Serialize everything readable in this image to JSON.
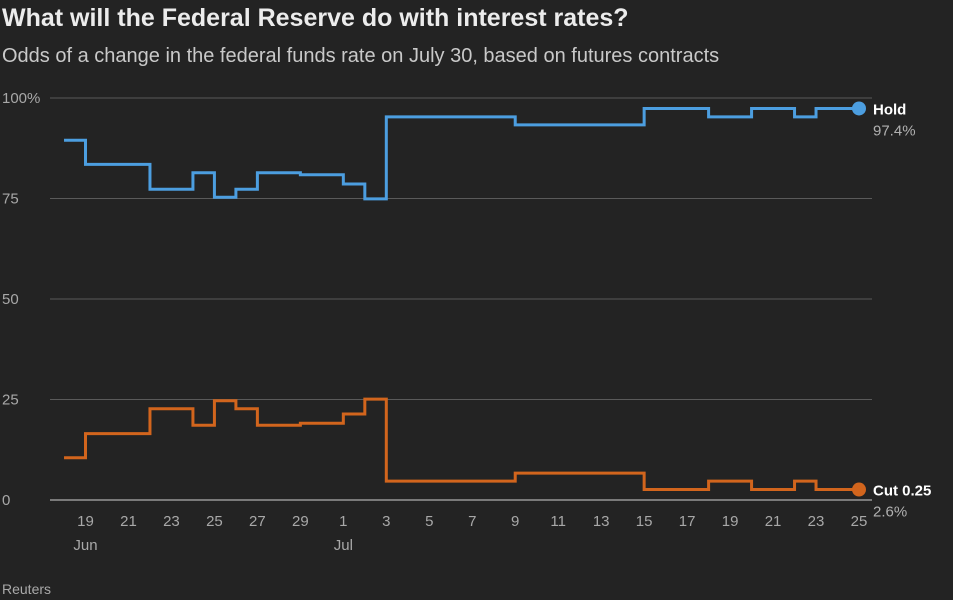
{
  "title": "What will the Federal Reserve do with interest rates?",
  "subtitle": "Odds of a change in the federal funds rate on July 30, based on futures contracts",
  "source": "Reuters",
  "chart_data": {
    "type": "line",
    "step": true,
    "ylim": [
      0,
      100
    ],
    "y_ticks": [
      0,
      25,
      50,
      75,
      100
    ],
    "y_tick_labels": [
      "0",
      "25",
      "50",
      "75",
      "100%"
    ],
    "x_ticks": [
      "2025-06-19",
      "2025-06-21",
      "2025-06-23",
      "2025-06-25",
      "2025-06-27",
      "2025-06-29",
      "2025-07-01",
      "2025-07-03",
      "2025-07-05",
      "2025-07-07",
      "2025-07-09",
      "2025-07-11",
      "2025-07-13",
      "2025-07-15",
      "2025-07-17",
      "2025-07-19",
      "2025-07-21",
      "2025-07-23",
      "2025-07-25"
    ],
    "x_tick_labels": [
      "19",
      "21",
      "23",
      "25",
      "27",
      "29",
      "1",
      "3",
      "5",
      "7",
      "9",
      "11",
      "13",
      "15",
      "17",
      "19",
      "21",
      "23",
      "25"
    ],
    "month_labels": [
      {
        "date": "2025-06-19",
        "label": "Jun"
      },
      {
        "date": "2025-07-01",
        "label": "Jul"
      }
    ],
    "grid": true,
    "series": [
      {
        "name": "Hold",
        "end_label": "97.4%",
        "color": "#4c9ee0",
        "points": [
          [
            "2025-06-18",
            89.5
          ],
          [
            "2025-06-19",
            83.5
          ],
          [
            "2025-06-20",
            83.5
          ],
          [
            "2025-06-21",
            83.5
          ],
          [
            "2025-06-22",
            77.3
          ],
          [
            "2025-06-23",
            77.3
          ],
          [
            "2025-06-24",
            81.4
          ],
          [
            "2025-06-25",
            75.3
          ],
          [
            "2025-06-26",
            77.3
          ],
          [
            "2025-06-27",
            81.4
          ],
          [
            "2025-06-28",
            81.4
          ],
          [
            "2025-06-29",
            80.9
          ],
          [
            "2025-06-30",
            80.9
          ],
          [
            "2025-07-01",
            78.6
          ],
          [
            "2025-07-02",
            74.9
          ],
          [
            "2025-07-03",
            95.3
          ],
          [
            "2025-07-04",
            95.3
          ],
          [
            "2025-07-05",
            95.3
          ],
          [
            "2025-07-06",
            95.3
          ],
          [
            "2025-07-07",
            95.3
          ],
          [
            "2025-07-08",
            95.3
          ],
          [
            "2025-07-09",
            93.3
          ],
          [
            "2025-07-10",
            93.3
          ],
          [
            "2025-07-11",
            93.3
          ],
          [
            "2025-07-12",
            93.3
          ],
          [
            "2025-07-13",
            93.3
          ],
          [
            "2025-07-14",
            93.3
          ],
          [
            "2025-07-15",
            97.4
          ],
          [
            "2025-07-16",
            97.4
          ],
          [
            "2025-07-17",
            97.4
          ],
          [
            "2025-07-18",
            95.3
          ],
          [
            "2025-07-19",
            95.3
          ],
          [
            "2025-07-20",
            97.4
          ],
          [
            "2025-07-21",
            97.4
          ],
          [
            "2025-07-22",
            95.3
          ],
          [
            "2025-07-23",
            97.4
          ],
          [
            "2025-07-24",
            97.4
          ],
          [
            "2025-07-25",
            97.4
          ]
        ]
      },
      {
        "name": "Cut 0.25",
        "end_label": "2.6%",
        "color": "#d2651d",
        "points": [
          [
            "2025-06-18",
            10.5
          ],
          [
            "2025-06-19",
            16.5
          ],
          [
            "2025-06-20",
            16.5
          ],
          [
            "2025-06-21",
            16.5
          ],
          [
            "2025-06-22",
            22.7
          ],
          [
            "2025-06-23",
            22.7
          ],
          [
            "2025-06-24",
            18.6
          ],
          [
            "2025-06-25",
            24.7
          ],
          [
            "2025-06-26",
            22.7
          ],
          [
            "2025-06-27",
            18.6
          ],
          [
            "2025-06-28",
            18.6
          ],
          [
            "2025-06-29",
            19.1
          ],
          [
            "2025-06-30",
            19.1
          ],
          [
            "2025-07-01",
            21.4
          ],
          [
            "2025-07-02",
            25.1
          ],
          [
            "2025-07-03",
            4.7
          ],
          [
            "2025-07-04",
            4.7
          ],
          [
            "2025-07-05",
            4.7
          ],
          [
            "2025-07-06",
            4.7
          ],
          [
            "2025-07-07",
            4.7
          ],
          [
            "2025-07-08",
            4.7
          ],
          [
            "2025-07-09",
            6.7
          ],
          [
            "2025-07-10",
            6.7
          ],
          [
            "2025-07-11",
            6.7
          ],
          [
            "2025-07-12",
            6.7
          ],
          [
            "2025-07-13",
            6.7
          ],
          [
            "2025-07-14",
            6.7
          ],
          [
            "2025-07-15",
            2.6
          ],
          [
            "2025-07-16",
            2.6
          ],
          [
            "2025-07-17",
            2.6
          ],
          [
            "2025-07-18",
            4.7
          ],
          [
            "2025-07-19",
            4.7
          ],
          [
            "2025-07-20",
            2.6
          ],
          [
            "2025-07-21",
            2.6
          ],
          [
            "2025-07-22",
            4.7
          ],
          [
            "2025-07-23",
            2.6
          ],
          [
            "2025-07-24",
            2.6
          ],
          [
            "2025-07-25",
            2.6
          ]
        ]
      }
    ]
  }
}
